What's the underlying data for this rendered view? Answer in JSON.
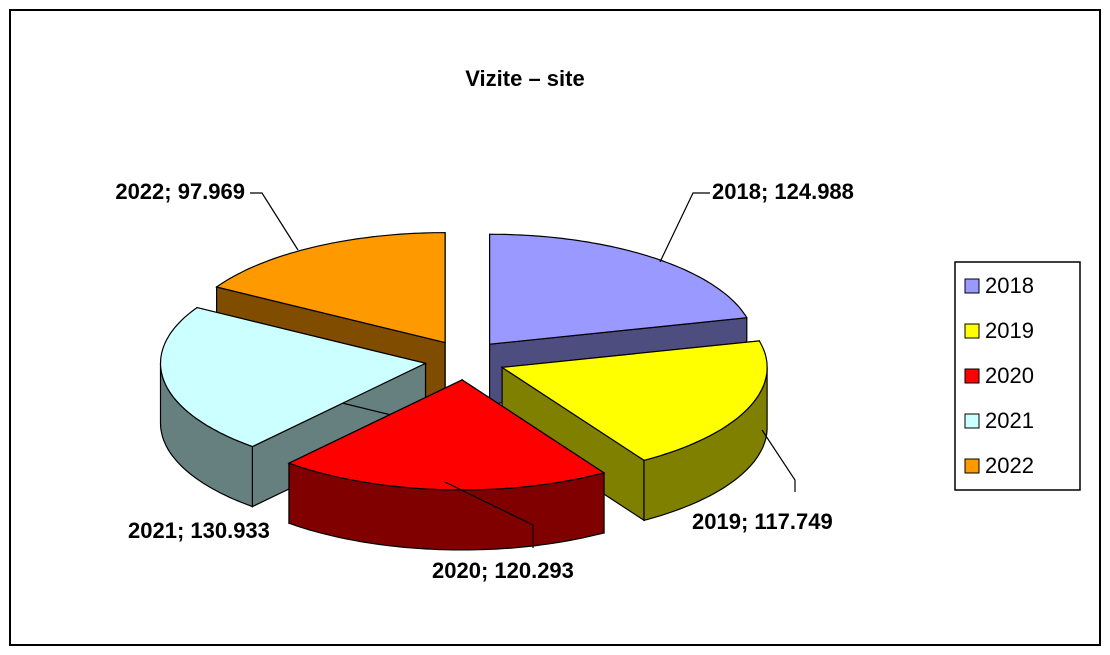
{
  "chart_data": {
    "type": "pie",
    "title": "Vizite – site",
    "categories": [
      "2018",
      "2019",
      "2020",
      "2021",
      "2022"
    ],
    "values": [
      124988,
      117749,
      120293,
      130933,
      97969
    ],
    "value_labels": [
      "2018; 124.988",
      "2019; 117.749",
      "2020; 120.293",
      "2021; 130.933",
      "2022; 97.969"
    ],
    "colors": [
      "#9999ff",
      "#ffff00",
      "#ff0000",
      "#ccffff",
      "#ff9900"
    ],
    "legend": "right"
  }
}
